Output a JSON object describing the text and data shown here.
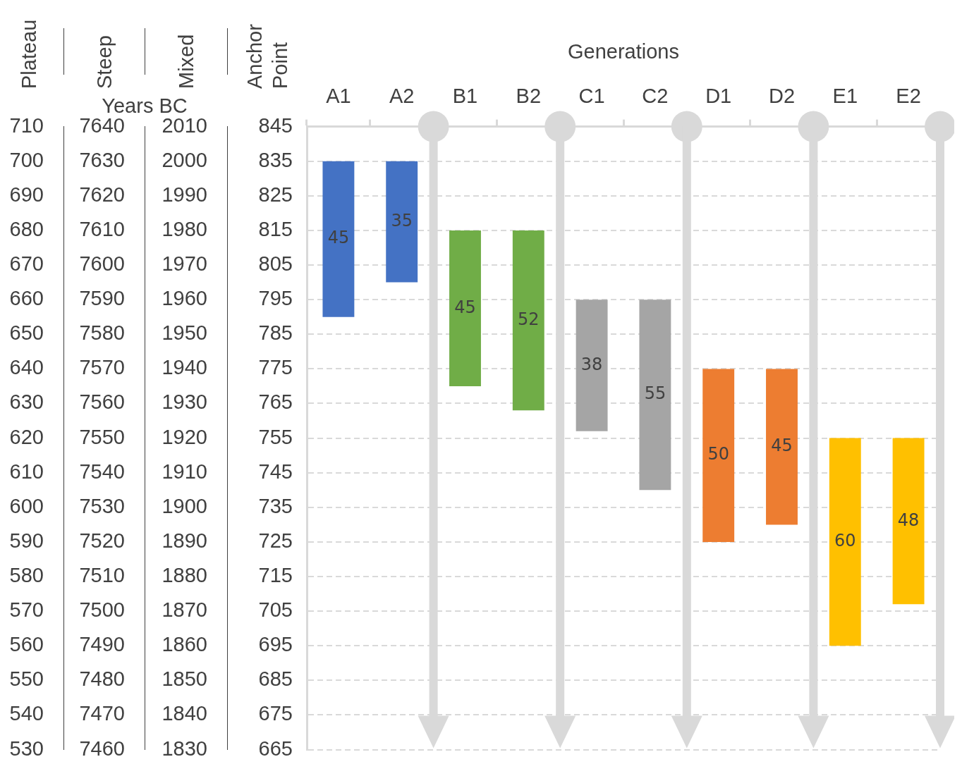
{
  "chart_data": {
    "type": "bar",
    "xlabel": "Generations",
    "ylabel": "Anchor Point",
    "y2label": "Mixed",
    "y3label": "Steep",
    "annotations": [
      "Years BC",
      "Plateau",
      "710",
      "700",
      "690",
      "680",
      "670",
      "660",
      "650",
      "640",
      "630",
      "620",
      "610",
      "600",
      "590",
      "580",
      "570",
      "560",
      "550",
      "540",
      "530"
    ],
    "categories": [
      "A1",
      "A2",
      "B1",
      "B2",
      "C1",
      "C2",
      "D1",
      "D2",
      "E1",
      "E2"
    ],
    "values": [
      45,
      35,
      45,
      52,
      38,
      55,
      50,
      45,
      60,
      48
    ],
    "base": [
      790,
      800,
      770,
      763,
      757,
      740,
      725,
      730,
      695,
      707
    ],
    "colors": [
      "#4472c4",
      "#4472c4",
      "#70ad47",
      "#70ad47",
      "#a5a5a5",
      "#a5a5a5",
      "#ed7d31",
      "#ed7d31",
      "#ffc000",
      "#ffc000"
    ],
    "data_labels": true,
    "grid": "y",
    "ylim": [
      665,
      845
    ],
    "yticks": [
      665,
      675,
      685,
      695,
      705,
      715,
      725,
      735,
      745,
      755,
      765,
      775,
      785,
      795,
      805,
      815,
      825,
      835,
      845
    ],
    "y2lim": [
      1830,
      2010
    ],
    "y2ticks": [
      1830,
      1840,
      1850,
      1860,
      1870,
      1880,
      1890,
      1900,
      1910,
      1920,
      1930,
      1940,
      1950,
      1960,
      1970,
      1980,
      1990,
      2000,
      2010
    ],
    "y3lim": [
      7460,
      7640
    ],
    "y3ticks": [
      7460,
      7470,
      7480,
      7490,
      7500,
      7510,
      7520,
      7530,
      7540,
      7550,
      7560,
      7570,
      7580,
      7590,
      7600,
      7610,
      7620,
      7630,
      7640
    ]
  }
}
